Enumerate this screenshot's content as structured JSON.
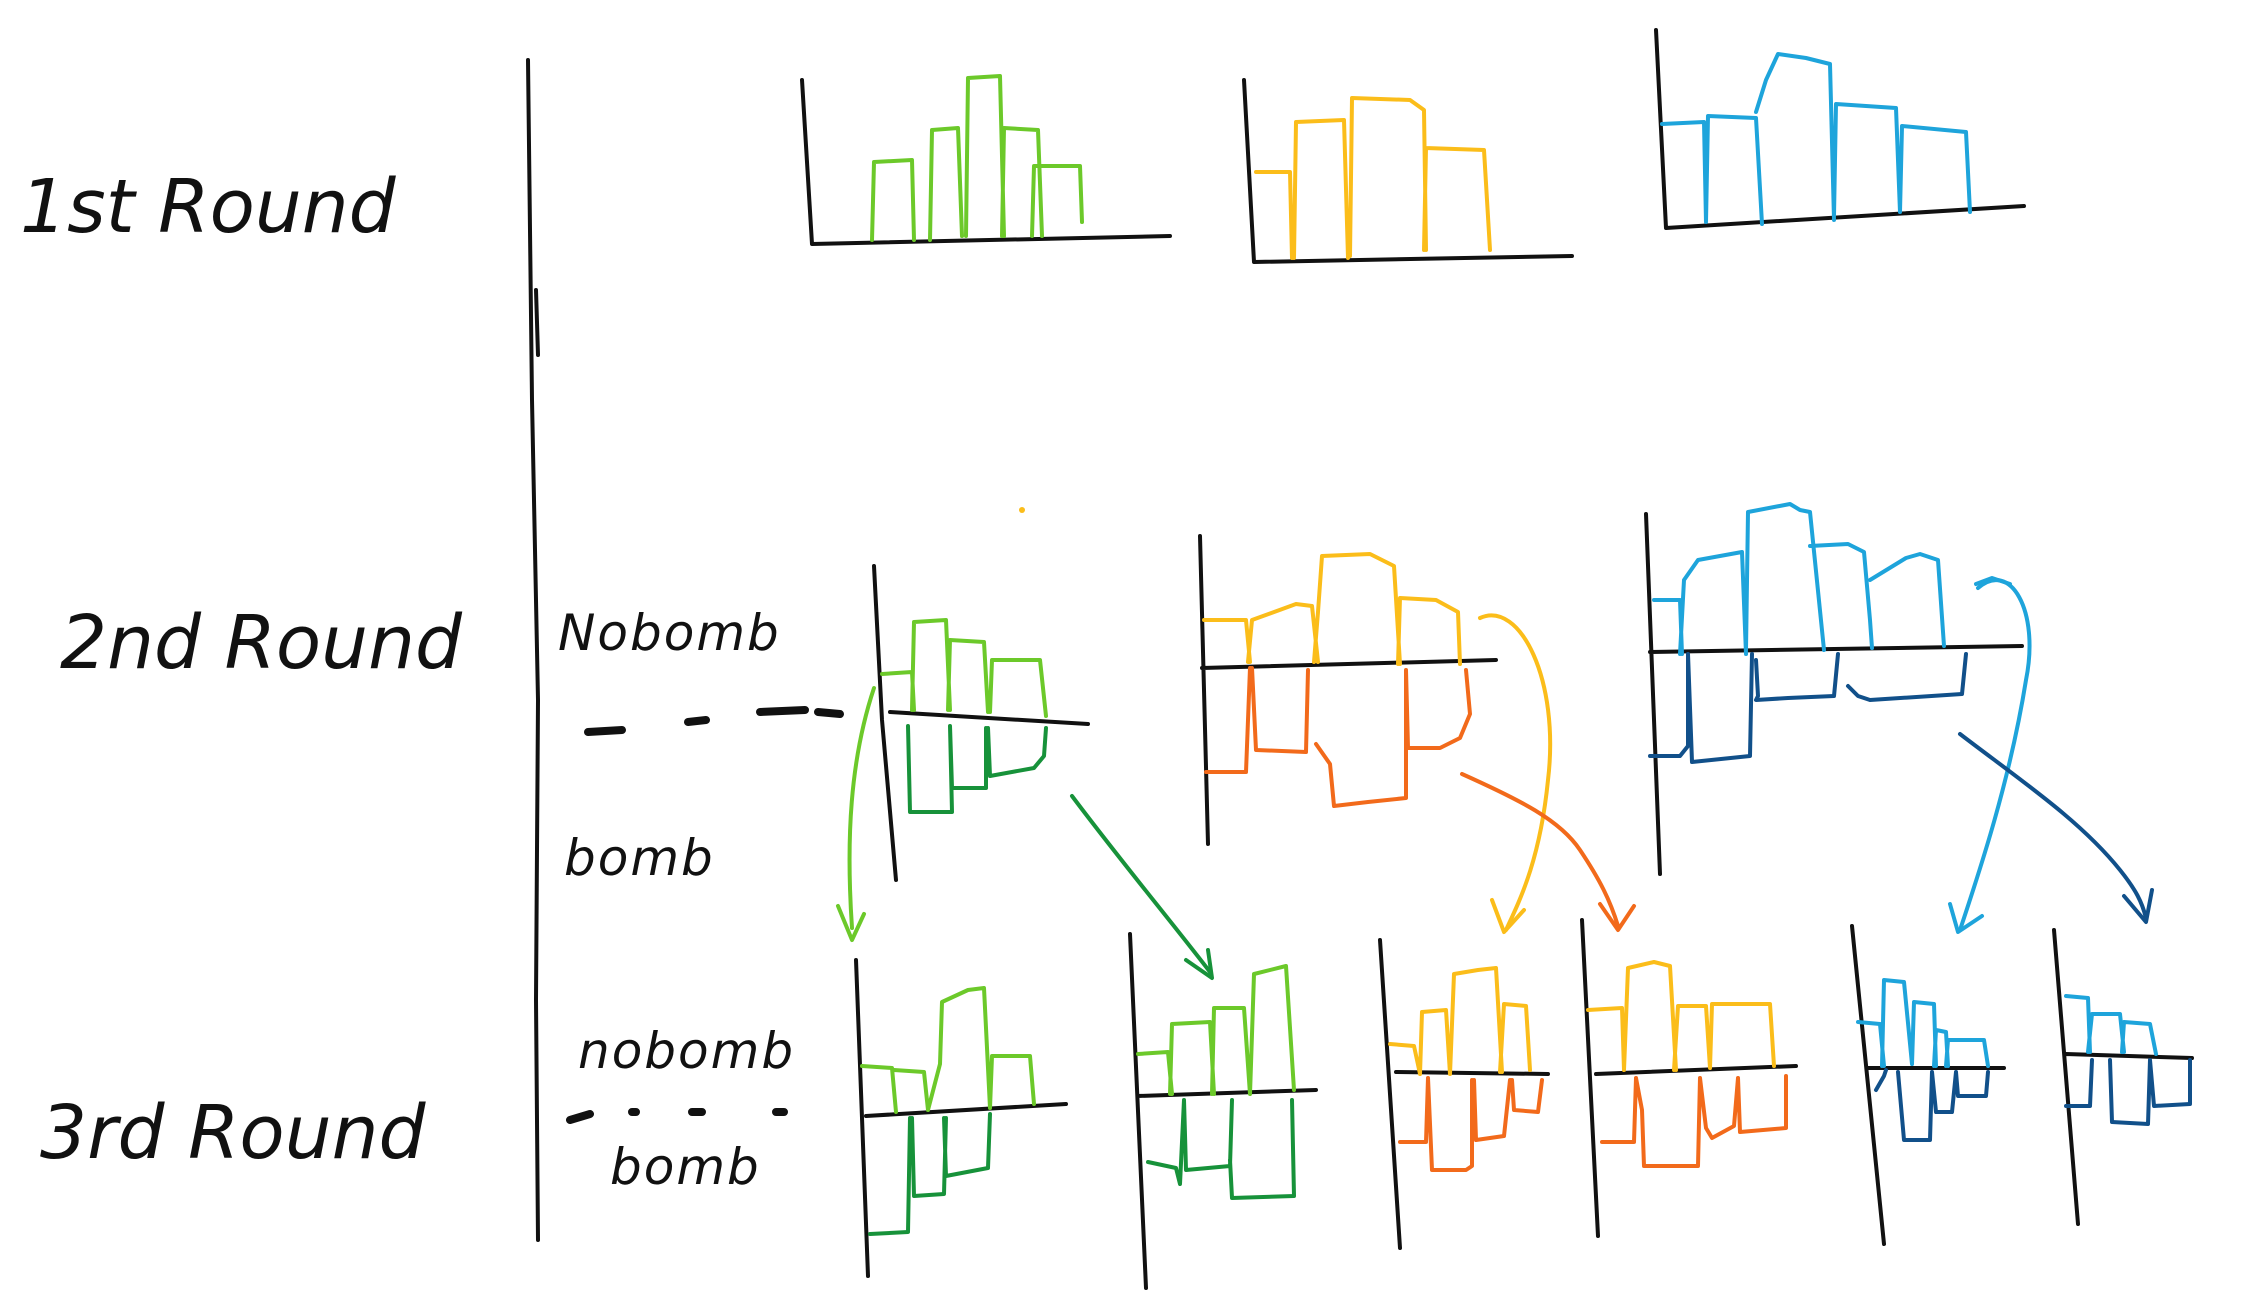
{
  "rows": {
    "round1": "1st   Round",
    "round2": "2nd  Round",
    "round3": "3rd  Round"
  },
  "labels": {
    "r2_nobomb": "Nobomb",
    "r2_bomb": "bomb",
    "r3_nobomb": "nobomb",
    "r3_bomb": "bomb"
  },
  "colors": {
    "green_light": "#6cc92a",
    "green_dark": "#17923a",
    "yellow": "#fbbd1a",
    "orange": "#f26a1b",
    "blue_light": "#1ea4db",
    "blue_dark": "#11508a",
    "ink": "#111111"
  }
}
